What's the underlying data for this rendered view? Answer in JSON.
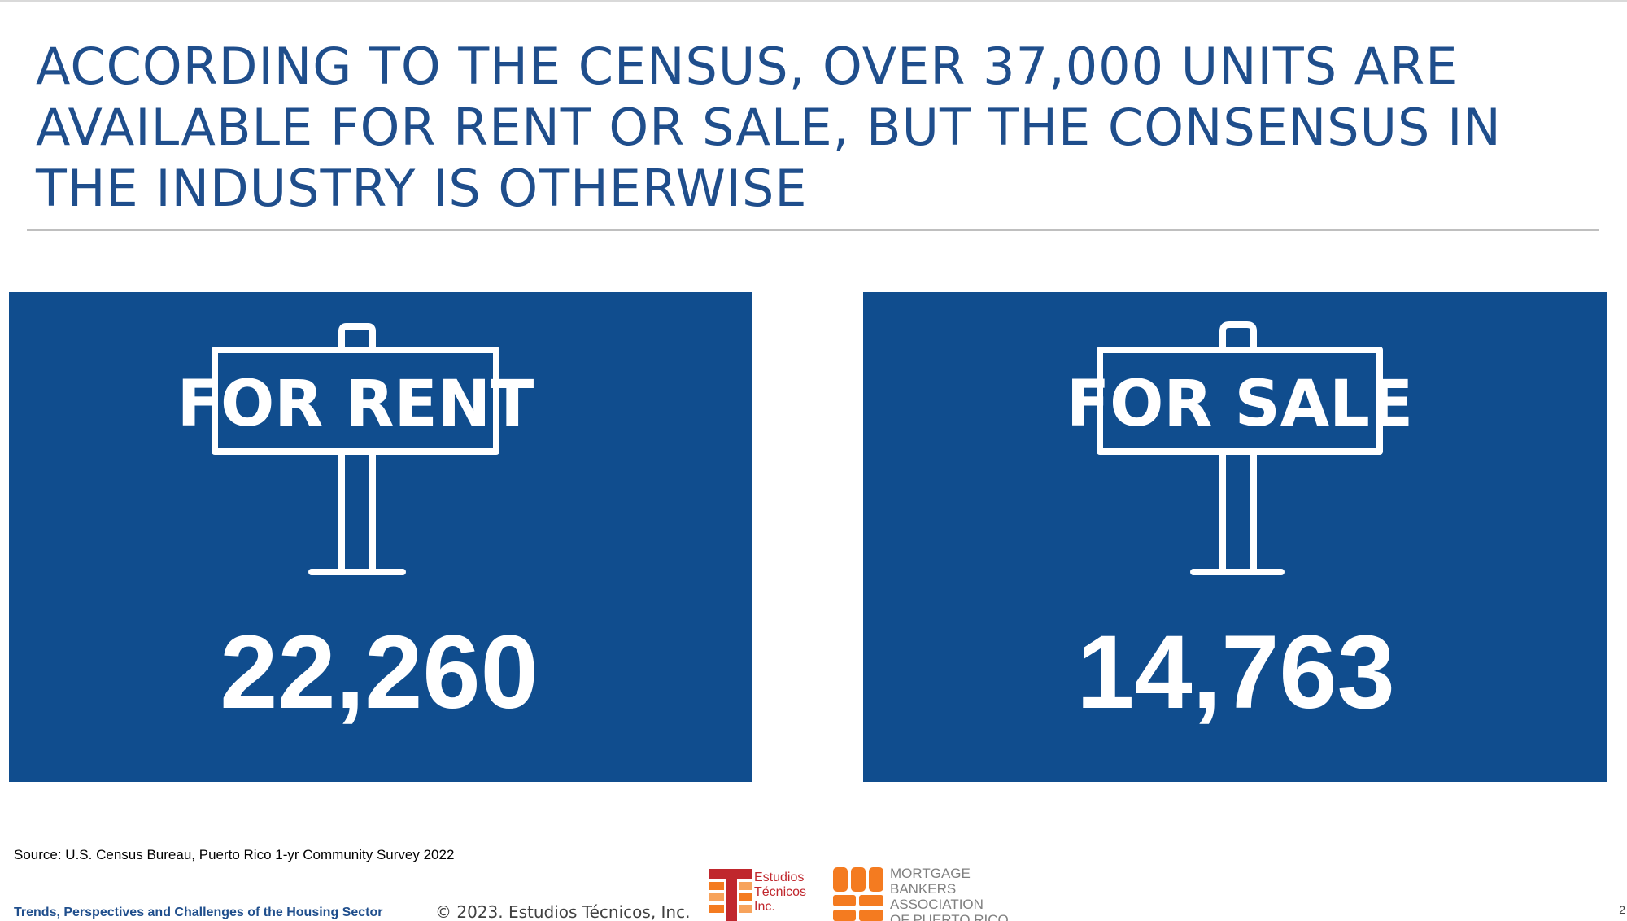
{
  "slide": {
    "title": "ACCORDING TO THE CENSUS, OVER 37,000 UNITS ARE AVAILABLE FOR RENT OR SALE, BUT THE CONSENSUS IN THE INDUSTRY IS OTHERWISE",
    "panels": [
      {
        "sign_text": "FOR RENT",
        "value": "22,260"
      },
      {
        "sign_text": "FOR SALE",
        "value": "14,763"
      }
    ],
    "source": "Source: U.S. Census Bureau, Puerto Rico 1-yr Community Survey 2022"
  },
  "footer": {
    "presentation_title": "Trends, Perspectives and Challenges of the Housing Sector",
    "copyright": "© 2023. Estudios Técnicos, Inc.",
    "logo_estudios_tecnicos": "Estudios\nTécnicos\nInc.",
    "logo_mba": "MORTGAGE\nBANKERS\nASSOCIATION\nOF PUERTO RICO",
    "slide_number": "2"
  },
  "colors": {
    "title": "#1f4e8c",
    "panel": "#104d8e",
    "logo_red": "#c0272d",
    "logo_orange": "#f47b20"
  }
}
